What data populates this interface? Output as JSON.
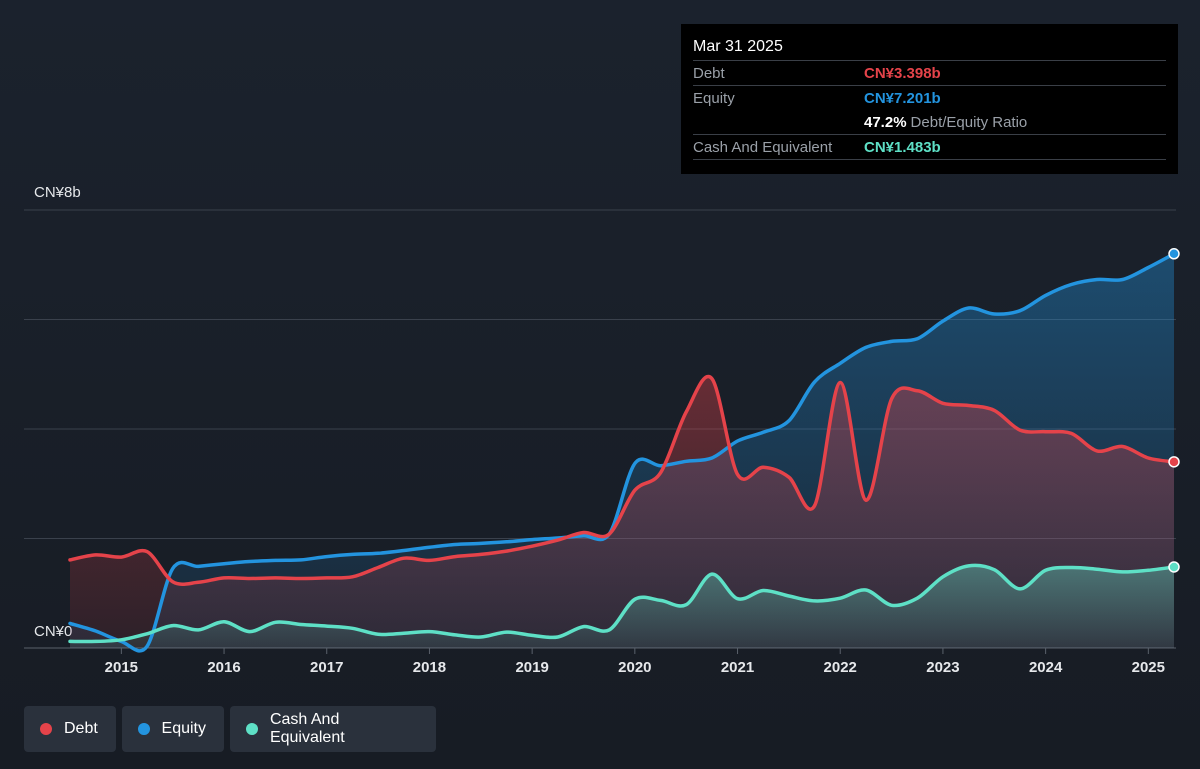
{
  "tooltip": {
    "date": "Mar 31 2025",
    "debt_label": "Debt",
    "debt_value": "CN¥3.398b",
    "equity_label": "Equity",
    "equity_value": "CN¥7.201b",
    "ratio_pct": "47.2%",
    "ratio_label": "Debt/Equity Ratio",
    "cash_label": "Cash And Equivalent",
    "cash_value": "CN¥1.483b"
  },
  "legend": {
    "debt": "Debt",
    "equity": "Equity",
    "cash": "Cash And Equivalent"
  },
  "colors": {
    "debt": "#e5434a",
    "equity": "#2394df",
    "cash": "#5ee0c6",
    "background": "#1b222d",
    "legend_bg": "#2a313c"
  },
  "chart_data": {
    "type": "area",
    "y_top_label": "CN¥8b",
    "y_bottom_label": "CN¥0",
    "ylim": [
      0,
      8
    ],
    "xlim": [
      2014.5,
      2025.25
    ],
    "x_ticks": [
      "2015",
      "2016",
      "2017",
      "2018",
      "2019",
      "2020",
      "2021",
      "2022",
      "2023",
      "2024",
      "2025"
    ],
    "grid": true,
    "legend_position": "bottom-left",
    "series": [
      {
        "name": "Debt",
        "x": [
          2014.5,
          2014.75,
          2015.0,
          2015.25,
          2015.5,
          2015.75,
          2016.0,
          2016.25,
          2016.5,
          2016.75,
          2017.0,
          2017.25,
          2017.5,
          2017.75,
          2018.0,
          2018.25,
          2018.5,
          2018.75,
          2019.0,
          2019.25,
          2019.5,
          2019.75,
          2020.0,
          2020.25,
          2020.5,
          2020.75,
          2021.0,
          2021.25,
          2021.5,
          2021.75,
          2022.0,
          2022.25,
          2022.5,
          2022.75,
          2023.0,
          2023.25,
          2023.5,
          2023.75,
          2024.0,
          2024.25,
          2024.5,
          2024.75,
          2025.0,
          2025.25
        ],
        "values": [
          1.61,
          1.7,
          1.66,
          1.76,
          1.21,
          1.2,
          1.28,
          1.27,
          1.28,
          1.27,
          1.28,
          1.3,
          1.47,
          1.64,
          1.6,
          1.67,
          1.71,
          1.77,
          1.86,
          1.97,
          2.11,
          2.08,
          2.88,
          3.2,
          4.31,
          4.92,
          3.17,
          3.3,
          3.12,
          2.6,
          4.85,
          2.7,
          4.55,
          4.7,
          4.47,
          4.43,
          4.34,
          3.98,
          3.95,
          3.92,
          3.6,
          3.68,
          3.47,
          3.4
        ]
      },
      {
        "name": "Equity",
        "x": [
          2014.5,
          2014.75,
          2015.0,
          2015.25,
          2015.5,
          2015.75,
          2016.0,
          2016.25,
          2016.5,
          2016.75,
          2017.0,
          2017.25,
          2017.5,
          2017.75,
          2018.0,
          2018.25,
          2018.5,
          2018.75,
          2019.0,
          2019.25,
          2019.5,
          2019.75,
          2020.0,
          2020.25,
          2020.5,
          2020.75,
          2021.0,
          2021.25,
          2021.5,
          2021.75,
          2022.0,
          2022.25,
          2022.5,
          2022.75,
          2023.0,
          2023.25,
          2023.5,
          2023.75,
          2024.0,
          2024.25,
          2024.5,
          2024.75,
          2025.0,
          2025.25
        ],
        "values": [
          0.45,
          0.31,
          0.12,
          0.03,
          1.45,
          1.49,
          1.54,
          1.58,
          1.6,
          1.61,
          1.67,
          1.71,
          1.73,
          1.78,
          1.84,
          1.89,
          1.91,
          1.94,
          1.98,
          2.01,
          2.05,
          2.08,
          3.37,
          3.33,
          3.41,
          3.47,
          3.78,
          3.94,
          4.15,
          4.86,
          5.2,
          5.49,
          5.6,
          5.65,
          5.97,
          6.21,
          6.1,
          6.16,
          6.44,
          6.64,
          6.73,
          6.73,
          6.95,
          7.2
        ]
      },
      {
        "name": "Cash And Equivalent",
        "x": [
          2014.5,
          2014.75,
          2015.0,
          2015.25,
          2015.5,
          2015.75,
          2016.0,
          2016.25,
          2016.5,
          2016.75,
          2017.0,
          2017.25,
          2017.5,
          2017.75,
          2018.0,
          2018.25,
          2018.5,
          2018.75,
          2019.0,
          2019.25,
          2019.5,
          2019.75,
          2020.0,
          2020.25,
          2020.5,
          2020.75,
          2021.0,
          2021.25,
          2021.5,
          2021.75,
          2022.0,
          2022.25,
          2022.5,
          2022.75,
          2023.0,
          2023.25,
          2023.5,
          2023.75,
          2024.0,
          2024.25,
          2024.5,
          2024.75,
          2025.0,
          2025.25
        ],
        "values": [
          0.12,
          0.12,
          0.15,
          0.26,
          0.41,
          0.33,
          0.48,
          0.3,
          0.47,
          0.43,
          0.4,
          0.36,
          0.25,
          0.27,
          0.3,
          0.24,
          0.2,
          0.29,
          0.23,
          0.2,
          0.39,
          0.33,
          0.89,
          0.87,
          0.79,
          1.35,
          0.9,
          1.05,
          0.95,
          0.86,
          0.91,
          1.06,
          0.78,
          0.91,
          1.3,
          1.5,
          1.43,
          1.08,
          1.42,
          1.47,
          1.44,
          1.39,
          1.42,
          1.48
        ]
      }
    ]
  }
}
